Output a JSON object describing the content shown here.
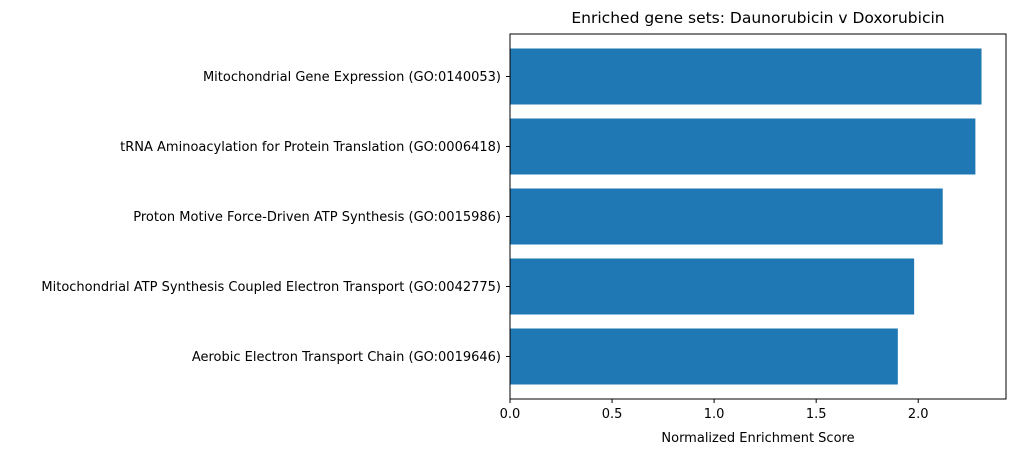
{
  "chart_data": {
    "type": "bar",
    "orientation": "horizontal",
    "title": "Enriched gene sets: Daunorubicin v Doxorubicin",
    "xlabel": "Normalized Enrichment Score",
    "ylabel": "",
    "categories": [
      "Mitochondrial Gene Expression (GO:0140053)",
      "tRNA Aminoacylation for Protein Translation (GO:0006418)",
      "Proton Motive Force-Driven ATP Synthesis (GO:0015986)",
      "Mitochondrial ATP Synthesis Coupled Electron Transport (GO:0042775)",
      "Aerobic Electron Transport Chain (GO:0019646)"
    ],
    "values": [
      2.31,
      2.28,
      2.12,
      1.98,
      1.9
    ],
    "xlim": [
      0,
      2.43
    ],
    "xticks": [
      0.0,
      0.5,
      1.0,
      1.5,
      2.0
    ],
    "xtick_labels": [
      "0.0",
      "0.5",
      "1.0",
      "1.5",
      "2.0"
    ],
    "bar_color": "#1f77b4",
    "grid": false,
    "legend": "none"
  }
}
